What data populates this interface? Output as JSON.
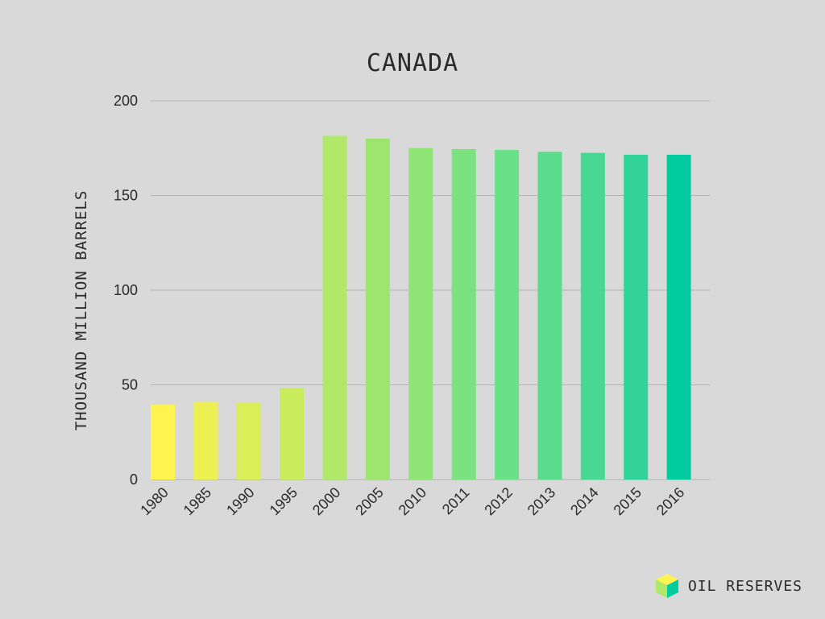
{
  "chart_data": {
    "type": "bar",
    "title": "CANADA",
    "xlabel": "",
    "ylabel": "THOUSAND MILLION BARRELS",
    "categories": [
      "1980",
      "1985",
      "1990",
      "1995",
      "2000",
      "2005",
      "2010",
      "2011",
      "2012",
      "2013",
      "2014",
      "2015",
      "2016"
    ],
    "values": [
      39.5,
      41,
      40.5,
      48.5,
      181.5,
      180,
      175,
      174.5,
      174,
      173,
      172.5,
      171.5,
      171.5
    ],
    "ylim": [
      0,
      200
    ],
    "yticks": [
      0,
      50,
      100,
      150,
      200
    ],
    "grid": true,
    "bar_colors": [
      "#fff44f",
      "#ecf151",
      "#daef57",
      "#c9ec5d",
      "#b1e86a",
      "#9ee56f",
      "#8ee576",
      "#7ae27f",
      "#6ae087",
      "#5bdc8d",
      "#48d894",
      "#32d39b",
      "#00cc9f"
    ]
  },
  "brand": {
    "text": "OIL RESERVES",
    "icon": "cube-icon",
    "colors": {
      "top": "#fff44f",
      "left": "#b1e86a",
      "right": "#00cc9f"
    }
  }
}
